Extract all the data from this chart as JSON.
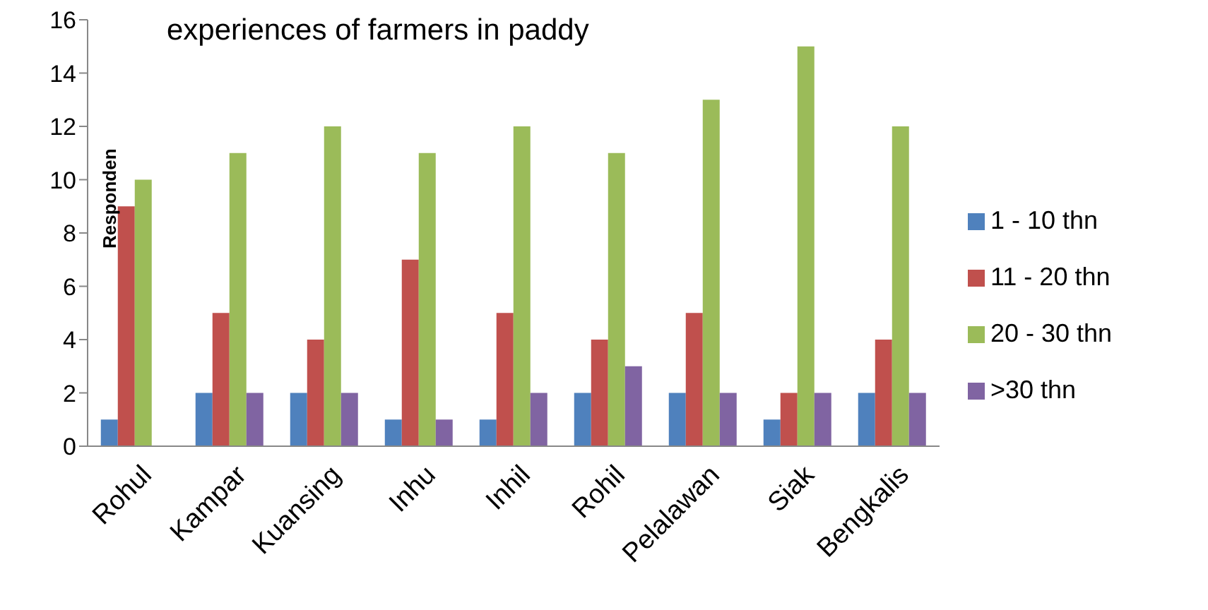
{
  "chart_data": {
    "type": "bar",
    "title": "experiences of farmers in paddy",
    "ylabel": "Responden",
    "categories": [
      "Rohul",
      "Kampar",
      "Kuansing",
      "Inhu",
      "Inhil",
      "Rohil",
      "Pelalawan",
      "Siak",
      "Bengkalis"
    ],
    "series": [
      {
        "name": "1 - 10 thn",
        "color": "#4f81bd",
        "values": [
          1,
          2,
          2,
          1,
          1,
          2,
          2,
          1,
          2
        ]
      },
      {
        "name": "11 - 20 thn",
        "color": "#c0504d",
        "values": [
          9,
          5,
          4,
          7,
          5,
          4,
          5,
          2,
          4
        ]
      },
      {
        "name": "20 - 30 thn",
        "color": "#9bbb59",
        "values": [
          10,
          11,
          12,
          11,
          12,
          11,
          13,
          15,
          12
        ]
      },
      {
        "name": ">30 thn",
        "color": "#8064a2",
        "values": [
          0,
          2,
          2,
          1,
          2,
          3,
          2,
          2,
          2
        ]
      }
    ],
    "ylim": [
      0,
      16
    ],
    "yticks": [
      0,
      2,
      4,
      6,
      8,
      10,
      12,
      14,
      16
    ],
    "grid": false,
    "legend": "right"
  }
}
